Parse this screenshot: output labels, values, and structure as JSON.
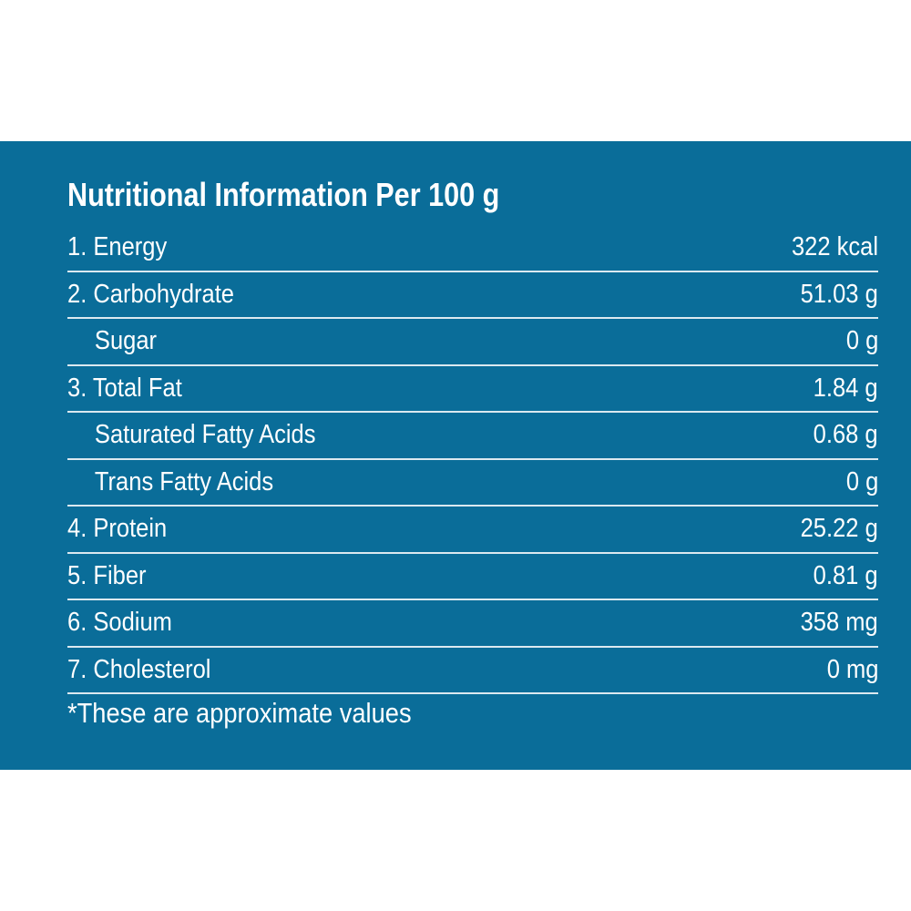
{
  "header": {
    "title": "Nutritional Information Per 100 g"
  },
  "table": {
    "rows": [
      [
        "1. Energy",
        "322 kcal"
      ],
      [
        "2. Carbohydrate",
        "51.03 g"
      ],
      [
        "Sugar",
        "0 g"
      ],
      [
        "3. Total Fat",
        "1.84 g"
      ],
      [
        "Saturated Fatty Acids",
        "0.68 g"
      ],
      [
        "Trans Fatty Acids",
        "0 g"
      ],
      [
        "4. Protein",
        "25.22 g"
      ],
      [
        "5. Fiber",
        "0.81 g"
      ],
      [
        "6. Sodium",
        "358 mg"
      ],
      [
        "7. Cholesterol",
        "0 mg"
      ]
    ]
  },
  "footnote": "*These are approximate values"
}
